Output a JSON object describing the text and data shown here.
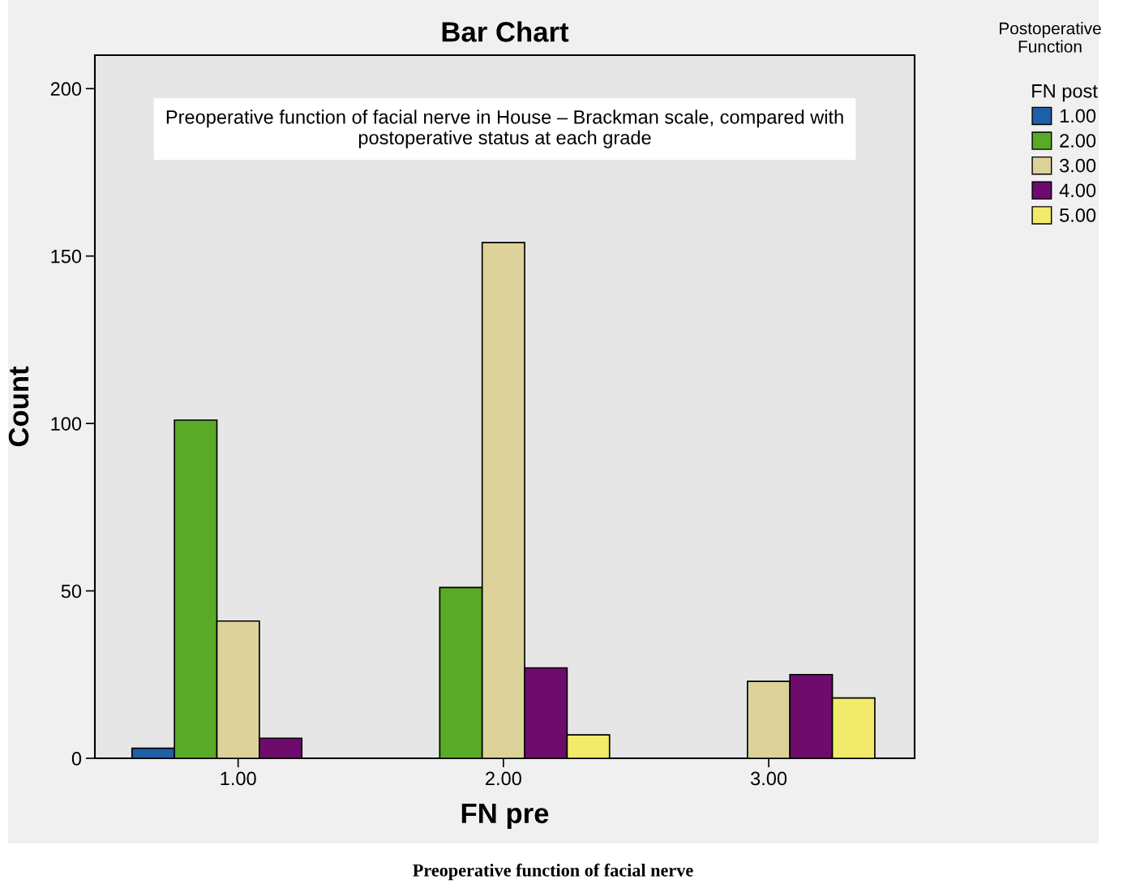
{
  "chart_data": {
    "type": "bar",
    "title": "Bar Chart",
    "xlabel": "FN pre",
    "ylabel": "Count",
    "categories": [
      "1.00",
      "2.00",
      "3.00"
    ],
    "series": [
      {
        "name": "1.00",
        "color": "#1f5fa8",
        "values": [
          3,
          null,
          null
        ]
      },
      {
        "name": "2.00",
        "color": "#5aaa28",
        "values": [
          101,
          51,
          null
        ]
      },
      {
        "name": "3.00",
        "color": "#dcd29a",
        "values": [
          41,
          154,
          23
        ]
      },
      {
        "name": "4.00",
        "color": "#6e0c6e",
        "values": [
          6,
          27,
          25
        ]
      },
      {
        "name": "5.00",
        "color": "#f2ea6a",
        "values": [
          null,
          7,
          18
        ]
      }
    ],
    "ylim": [
      0,
      210
    ],
    "yticks": [
      0,
      50,
      100,
      150,
      200
    ],
    "grid": false,
    "legend": "top right",
    "legend_title": "FN post",
    "annotations": [
      "Preoperative function of facial nerve in House – Brackman scale, compared with postoperative status at each grade",
      "Postoperative Function",
      "Preoperative function of facial nerve"
    ]
  }
}
